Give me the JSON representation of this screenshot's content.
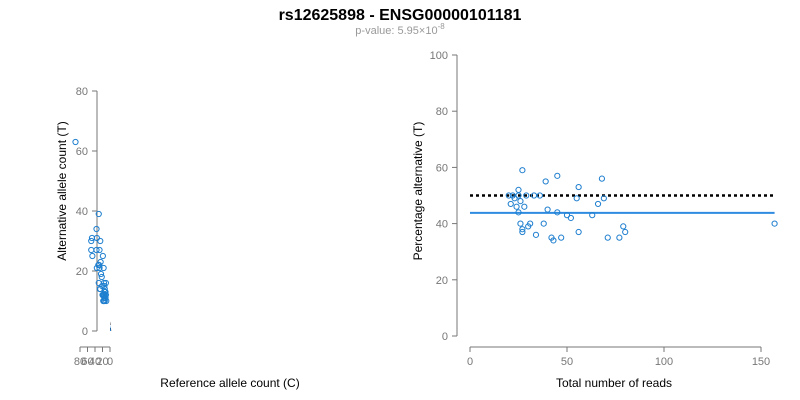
{
  "figure": {
    "title": "rs12625898 - ENSG00000101181",
    "subtitle_prefix": "p-value: 5.95×10",
    "subtitle_exponent": "-8"
  },
  "colors": {
    "points": "#1f7fcf",
    "fit_line": "#2e8be0",
    "reference_line": "#000000",
    "axis": "#777777"
  },
  "chart_data": [
    {
      "type": "scatter",
      "xlabel": "Reference allele count (C)",
      "ylabel": "Alternative allele count (T)",
      "xlim": [
        0,
        92
      ],
      "ylim": [
        0,
        80
      ],
      "xticks": [
        0,
        20,
        40,
        60,
        80
      ],
      "yticks": [
        0,
        20,
        40,
        60,
        80
      ],
      "grid": false,
      "reference_line": {
        "style": "dotted",
        "color": "#000000",
        "slope": 1,
        "intercept": 0
      },
      "fit_line": {
        "style": "solid",
        "color": "#2e8be0",
        "slope": 0.78,
        "intercept": 0
      },
      "points": [
        {
          "x": 10,
          "y": 10
        },
        {
          "x": 11,
          "y": 12
        },
        {
          "x": 11,
          "y": 16
        },
        {
          "x": 12,
          "y": 11
        },
        {
          "x": 12,
          "y": 13
        },
        {
          "x": 13,
          "y": 12
        },
        {
          "x": 14,
          "y": 10
        },
        {
          "x": 14,
          "y": 14
        },
        {
          "x": 14,
          "y": 13
        },
        {
          "x": 15,
          "y": 11
        },
        {
          "x": 15,
          "y": 15
        },
        {
          "x": 16,
          "y": 10
        },
        {
          "x": 16,
          "y": 12
        },
        {
          "x": 16,
          "y": 16
        },
        {
          "x": 17,
          "y": 10
        },
        {
          "x": 17,
          "y": 21
        },
        {
          "x": 18,
          "y": 10
        },
        {
          "x": 18,
          "y": 12
        },
        {
          "x": 19,
          "y": 25
        },
        {
          "x": 20,
          "y": 12
        },
        {
          "x": 21,
          "y": 15
        },
        {
          "x": 22,
          "y": 18
        },
        {
          "x": 24,
          "y": 19
        },
        {
          "x": 25,
          "y": 23
        },
        {
          "x": 26,
          "y": 30
        },
        {
          "x": 26,
          "y": 14
        },
        {
          "x": 27,
          "y": 14
        },
        {
          "x": 28,
          "y": 21
        },
        {
          "x": 28,
          "y": 27
        },
        {
          "x": 29,
          "y": 22
        },
        {
          "x": 30,
          "y": 39
        },
        {
          "x": 30,
          "y": 16
        },
        {
          "x": 31,
          "y": 22
        },
        {
          "x": 35,
          "y": 21
        },
        {
          "x": 35,
          "y": 31
        },
        {
          "x": 36,
          "y": 34
        },
        {
          "x": 36,
          "y": 27
        },
        {
          "x": 47,
          "y": 25
        },
        {
          "x": 48,
          "y": 31
        },
        {
          "x": 50,
          "y": 27
        },
        {
          "x": 50,
          "y": 30
        },
        {
          "x": 92,
          "y": 63
        }
      ]
    },
    {
      "type": "scatter",
      "xlabel": "Total number of reads",
      "ylabel": "Percentage alternative (T)",
      "xlim": [
        0,
        157
      ],
      "ylim": [
        0,
        100
      ],
      "xticks": [
        0,
        50,
        100,
        150
      ],
      "yticks": [
        0,
        20,
        40,
        60,
        80,
        100
      ],
      "grid": false,
      "reference_line": {
        "style": "dotted",
        "color": "#000000",
        "y": 50
      },
      "fit_line": {
        "style": "solid",
        "color": "#2e8be0",
        "y": 43.8
      },
      "points": [
        {
          "x": 20,
          "y": 50
        },
        {
          "x": 21,
          "y": 47
        },
        {
          "x": 22,
          "y": 50
        },
        {
          "x": 23,
          "y": 49
        },
        {
          "x": 24,
          "y": 46
        },
        {
          "x": 25,
          "y": 50
        },
        {
          "x": 25,
          "y": 52
        },
        {
          "x": 25,
          "y": 44
        },
        {
          "x": 26,
          "y": 48
        },
        {
          "x": 26,
          "y": 40
        },
        {
          "x": 27,
          "y": 59
        },
        {
          "x": 27,
          "y": 38
        },
        {
          "x": 27,
          "y": 37
        },
        {
          "x": 28,
          "y": 46
        },
        {
          "x": 29,
          "y": 50
        },
        {
          "x": 30,
          "y": 39
        },
        {
          "x": 31,
          "y": 40
        },
        {
          "x": 33,
          "y": 50
        },
        {
          "x": 34,
          "y": 36
        },
        {
          "x": 36,
          "y": 50
        },
        {
          "x": 38,
          "y": 40
        },
        {
          "x": 39,
          "y": 55
        },
        {
          "x": 40,
          "y": 45
        },
        {
          "x": 42,
          "y": 35
        },
        {
          "x": 43,
          "y": 34
        },
        {
          "x": 45,
          "y": 57
        },
        {
          "x": 45,
          "y": 44
        },
        {
          "x": 47,
          "y": 35
        },
        {
          "x": 50,
          "y": 43
        },
        {
          "x": 52,
          "y": 42
        },
        {
          "x": 55,
          "y": 49
        },
        {
          "x": 56,
          "y": 53
        },
        {
          "x": 56,
          "y": 37
        },
        {
          "x": 63,
          "y": 43
        },
        {
          "x": 66,
          "y": 47
        },
        {
          "x": 68,
          "y": 56
        },
        {
          "x": 69,
          "y": 49
        },
        {
          "x": 71,
          "y": 35
        },
        {
          "x": 77,
          "y": 35
        },
        {
          "x": 79,
          "y": 39
        },
        {
          "x": 80,
          "y": 37
        },
        {
          "x": 157,
          "y": 40
        }
      ]
    }
  ]
}
